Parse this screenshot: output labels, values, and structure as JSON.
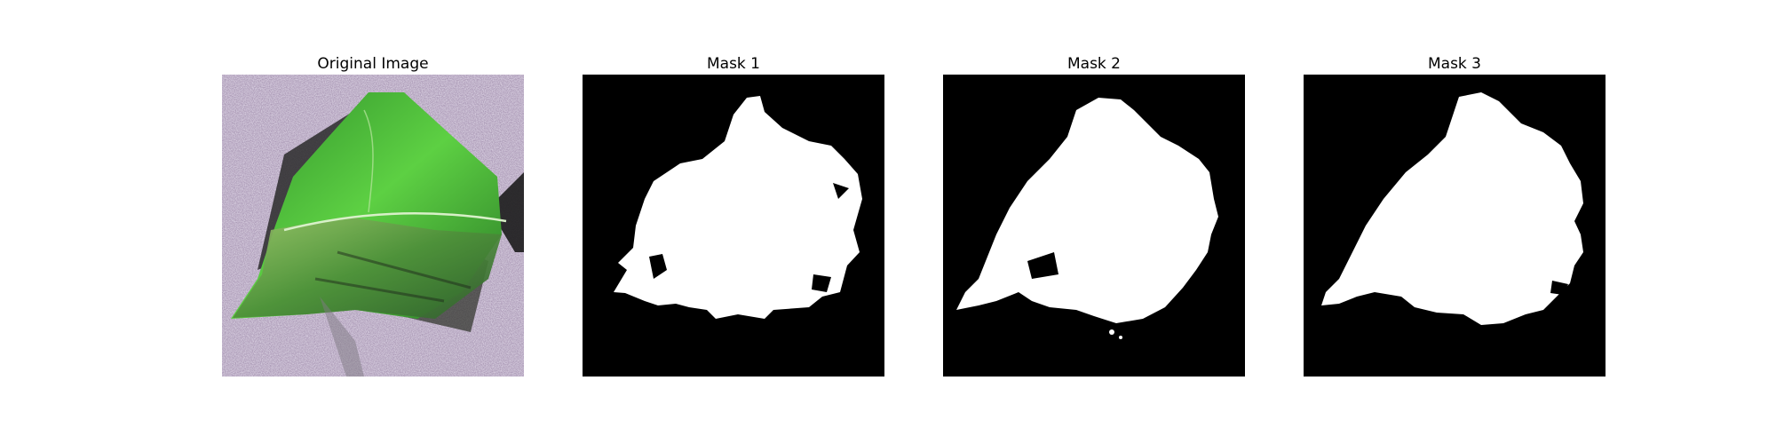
{
  "figure": {
    "panels": [
      {
        "title": "Original Image"
      },
      {
        "title": "Mask 1"
      },
      {
        "title": "Mask 2"
      },
      {
        "title": "Mask 3"
      }
    ]
  },
  "colors": {
    "mask_background": "#000000",
    "mask_foreground": "#ffffff",
    "leaf_green": "#3fae2a",
    "surface_lilac": "#b8a6c4"
  }
}
